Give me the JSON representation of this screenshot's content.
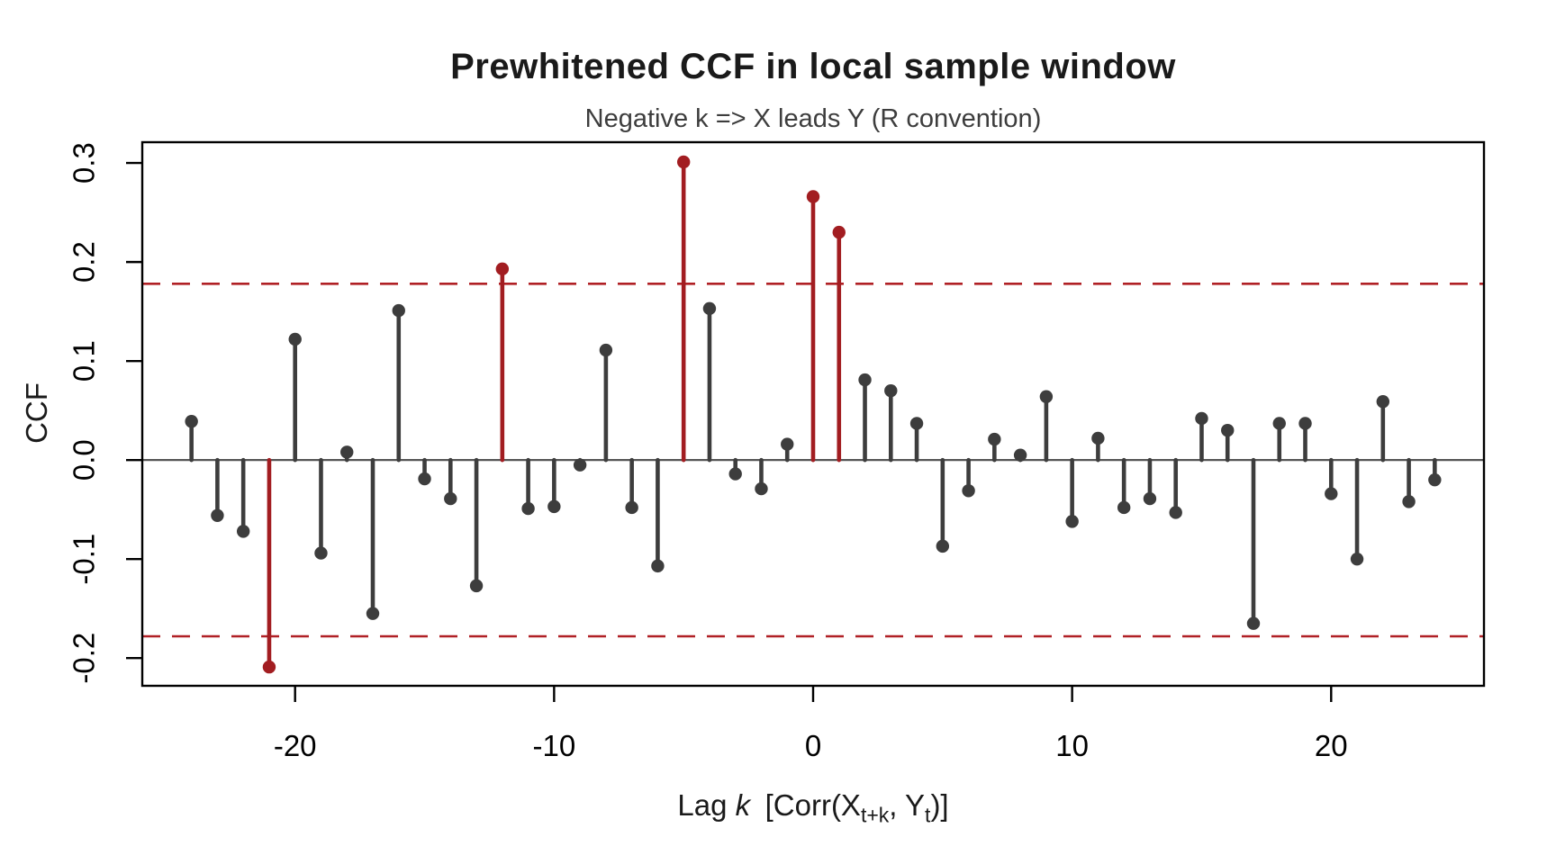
{
  "title": "Prewhitened CCF in local sample window",
  "subtitle": "Negative k => X leads Y (R convention)",
  "ylabel": "CCF",
  "xlabel": {
    "part1": "Lag ",
    "k": "k",
    "part2": " [Corr(X",
    "sub1": "t+k",
    "part3": ", Y",
    "sub2": "t",
    "part4": ")]"
  },
  "chart_data": {
    "type": "stem",
    "title": "Prewhitened CCF in local sample window",
    "subtitle": "Negative k => X leads Y (R convention)",
    "xlabel": "Lag k  [Corr(X_t+k, Y_t)]",
    "ylabel": "CCF",
    "x": [
      -24,
      -23,
      -22,
      -21,
      -20,
      -19,
      -18,
      -17,
      -16,
      -15,
      -14,
      -13,
      -12,
      -11,
      -10,
      -9,
      -8,
      -7,
      -6,
      -5,
      -4,
      -3,
      -2,
      -1,
      0,
      1,
      2,
      3,
      4,
      5,
      6,
      7,
      8,
      9,
      10,
      11,
      12,
      13,
      14,
      15,
      16,
      17,
      18,
      19,
      20,
      21,
      22,
      23,
      24
    ],
    "values": [
      0.039,
      -0.056,
      -0.072,
      -0.209,
      0.122,
      -0.094,
      0.008,
      -0.155,
      0.151,
      -0.019,
      -0.039,
      -0.127,
      0.193,
      -0.049,
      -0.047,
      -0.005,
      0.111,
      -0.048,
      -0.107,
      0.301,
      0.153,
      -0.014,
      -0.029,
      0.016,
      0.266,
      0.23,
      0.081,
      0.07,
      0.037,
      -0.087,
      -0.031,
      0.021,
      0.005,
      0.064,
      -0.062,
      0.022,
      -0.048,
      -0.039,
      -0.053,
      0.042,
      0.03,
      -0.165,
      0.037,
      0.037,
      -0.034,
      -0.1,
      0.059,
      -0.042,
      -0.02
    ],
    "significant_lags": [
      -21,
      -12,
      -5,
      0,
      1
    ],
    "conf_upper": 0.178,
    "conf_lower": -0.178,
    "x_ticks": [
      -20,
      -10,
      0,
      10,
      20
    ],
    "y_ticks": [
      0.3,
      0.2,
      0.1,
      0.0,
      -0.1,
      -0.2
    ],
    "xlim": [
      -25.9,
      25.9
    ],
    "ylim": [
      -0.228,
      0.321
    ],
    "grid": false,
    "legend": "none",
    "colors": {
      "stem_default": "#3d3d3d",
      "stem_significant": "#a21d21",
      "ci_line": "#b02025",
      "zero_line": "#555555",
      "axis": "#000000",
      "title_text": "#1a1a1a",
      "subtitle_text": "#3d3d3d"
    }
  }
}
